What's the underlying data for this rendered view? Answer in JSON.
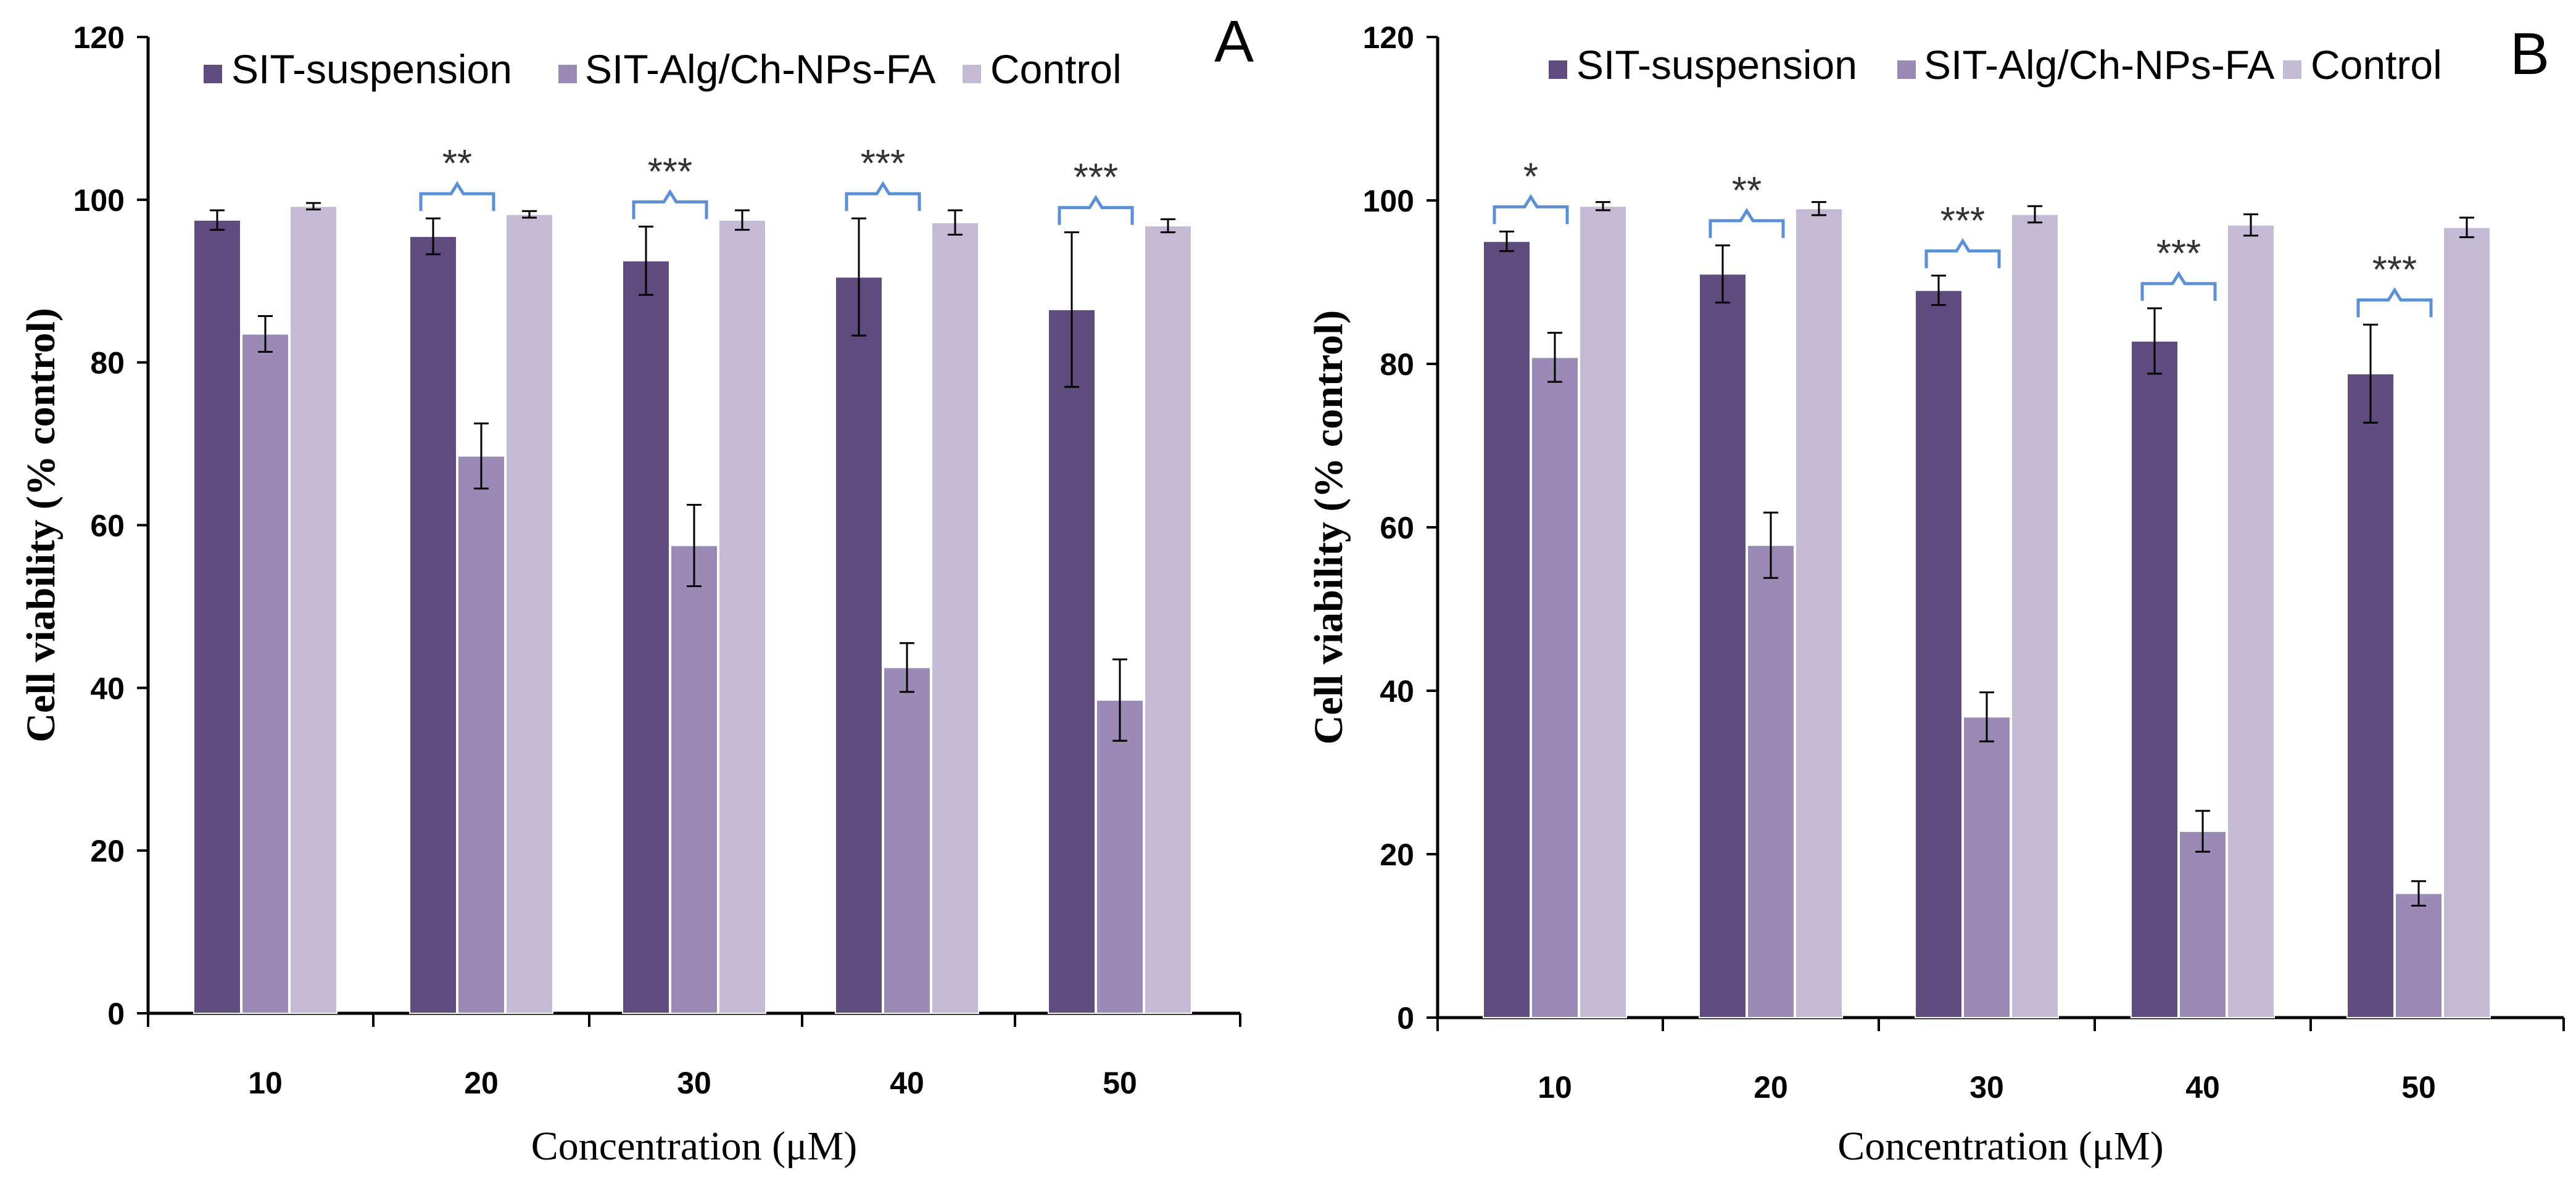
{
  "colors": {
    "series": [
      "#5f4b7d",
      "#9a8ab5",
      "#c4bad6"
    ],
    "bracket": "#5b8fd6",
    "axis": "#000000",
    "error": "#000000"
  },
  "chart_data": [
    {
      "panel": "A",
      "type": "bar",
      "title": "",
      "xlabel": "Concentration (μM)",
      "ylabel": "Cell viability (% control)",
      "ylim": [
        0,
        120
      ],
      "yticks": [
        "0",
        "20",
        "40",
        "60",
        "80",
        "100",
        "120"
      ],
      "categories": [
        "10",
        "20",
        "30",
        "40",
        "50"
      ],
      "legend_position": "top",
      "series": [
        {
          "name": "SIT-suspension",
          "values": [
            97.5,
            95.5,
            92.5,
            90.5,
            86.5
          ],
          "errors": [
            1.2,
            2.2,
            4.2,
            7.2,
            9.5
          ]
        },
        {
          "name": "SIT-Alg/Ch-NPs-FA",
          "values": [
            83.5,
            68.5,
            57.5,
            42.5,
            38.5
          ],
          "errors": [
            2.2,
            4.0,
            5.0,
            3.0,
            5.0
          ]
        },
        {
          "name": "Control",
          "values": [
            99.2,
            98.2,
            97.5,
            97.2,
            96.8
          ],
          "errors": [
            0.4,
            0.4,
            1.2,
            1.5,
            0.8
          ]
        }
      ],
      "significance": [
        "",
        "**",
        "***",
        "***",
        "***"
      ]
    },
    {
      "panel": "B",
      "type": "bar",
      "title": "",
      "xlabel": "Concentration (μM)",
      "ylabel": "Cell viability (% control)",
      "ylim": [
        0,
        120
      ],
      "yticks": [
        "0",
        "20",
        "40",
        "60",
        "80",
        "100",
        "120"
      ],
      "categories": [
        "10",
        "20",
        "30",
        "40",
        "50"
      ],
      "legend_position": "top",
      "series": [
        {
          "name": "SIT-suspension",
          "values": [
            95.0,
            91.0,
            89.0,
            82.8,
            78.8
          ],
          "errors": [
            1.2,
            3.5,
            1.8,
            4.0,
            6.0
          ]
        },
        {
          "name": "SIT-Alg/Ch-NPs-FA",
          "values": [
            80.8,
            57.8,
            36.8,
            22.8,
            15.2
          ],
          "errors": [
            3.0,
            4.0,
            3.0,
            2.5,
            1.5
          ]
        },
        {
          "name": "Control",
          "values": [
            99.3,
            99.0,
            98.3,
            97.0,
            96.7
          ],
          "errors": [
            0.5,
            0.8,
            1.0,
            1.3,
            1.2
          ]
        }
      ],
      "significance": [
        "*",
        "**",
        "***",
        "***",
        "***"
      ]
    }
  ]
}
